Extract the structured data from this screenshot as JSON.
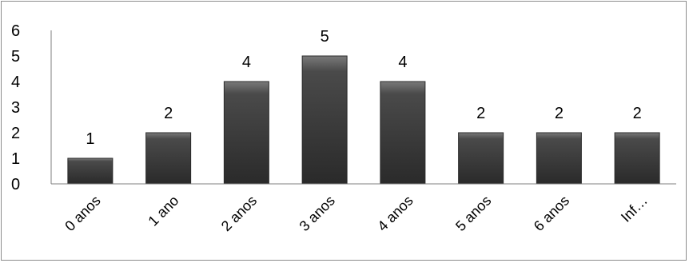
{
  "colors": {
    "bar_top": "#7a7a7a",
    "bar_mid": "#4a4a4a",
    "bar_bottom": "#2a2a2a",
    "bar_stroke": "#2b2b2b",
    "axis": "#7f7f7f"
  },
  "chart_data": {
    "type": "bar",
    "categories": [
      "0 anos",
      "1 ano",
      "2 anos",
      "3 anos",
      "4 anos",
      "5 anos",
      "6 anos",
      "Inf…"
    ],
    "values": [
      1,
      2,
      4,
      5,
      4,
      2,
      2,
      2
    ],
    "data_labels": [
      "1",
      "2",
      "4",
      "5",
      "4",
      "2",
      "2",
      "2"
    ],
    "y_tick_labels": [
      "0",
      "1",
      "2",
      "3",
      "4",
      "5",
      "6"
    ],
    "ylim": [
      0,
      6
    ],
    "grid": false,
    "legend": "none",
    "title": "",
    "xlabel": "",
    "ylabel": ""
  }
}
